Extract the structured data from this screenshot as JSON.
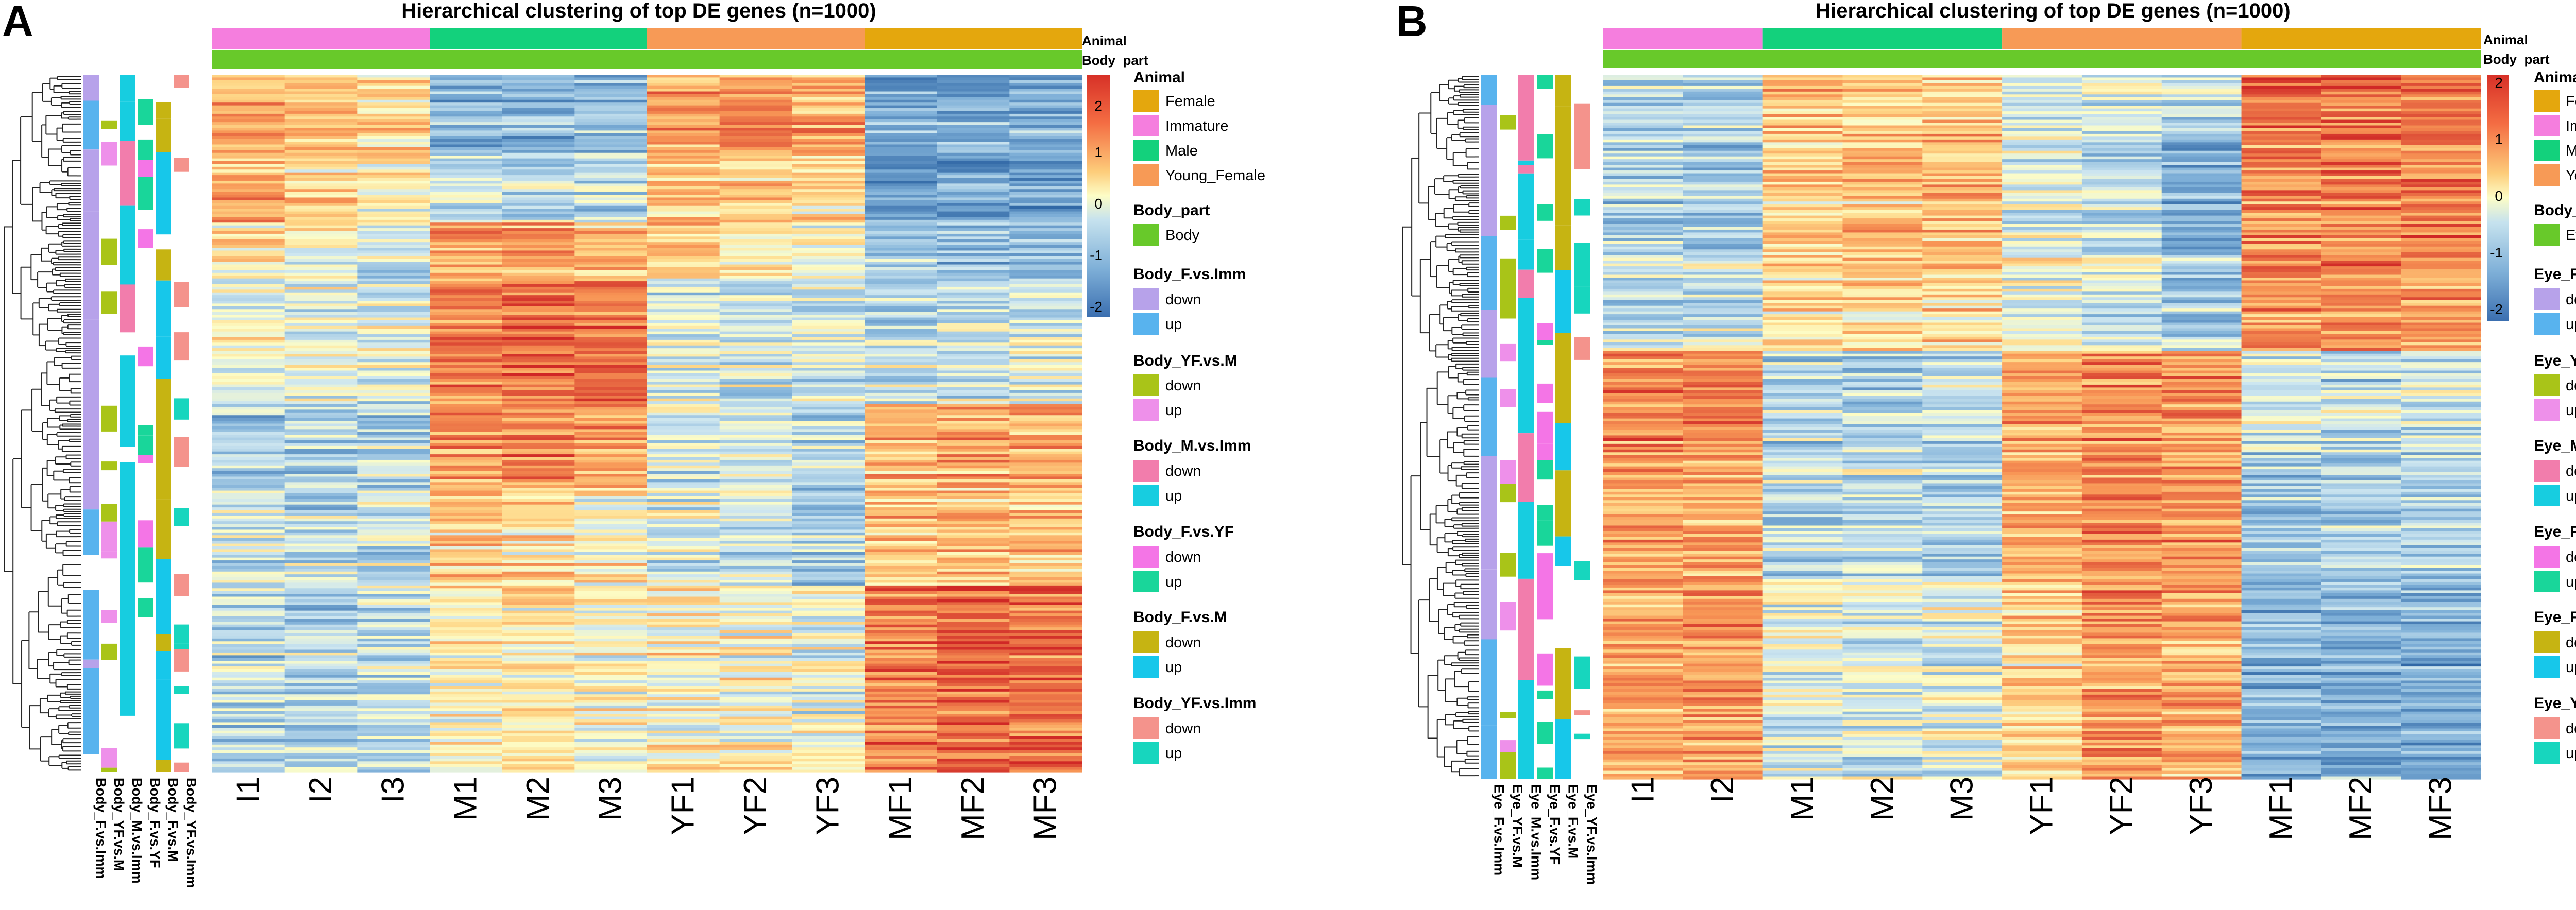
{
  "figure": {
    "colors": {
      "Female": "#e4a70d",
      "Immature": "#f57ede",
      "Male": "#13d17c",
      "Young_Female": "#f79a56",
      "Body": "#68c92a",
      "Eye": "#68c92a",
      "F_vs_Imm_down": "#b7a2ea",
      "F_vs_Imm_up": "#58b3ee",
      "YF_vs_M_down": "#a9c418",
      "YF_vs_M_up": "#ee90ea",
      "M_vs_Imm_down": "#f27dac",
      "M_vs_Imm_up": "#17cde0",
      "F_vs_YF_down": "#f475e6",
      "F_vs_YF_up": "#19d69a",
      "F_vs_M_down": "#c6b412",
      "F_vs_M_up": "#17c7ea",
      "YF_vs_Imm_down": "#f4938c",
      "YF_vs_Imm_up": "#17d6be"
    }
  },
  "chart_data": [
    {
      "panel": "A",
      "type": "heatmap",
      "title": "Hierarchical clustering of top DE genes (n=1000)",
      "n_genes": 1000,
      "samples": [
        "I1",
        "I2",
        "I3",
        "M1",
        "M2",
        "M3",
        "YF1",
        "YF2",
        "YF3",
        "MF1",
        "MF2",
        "MF3"
      ],
      "animal_groups": [
        {
          "label": "Immature",
          "n": 3
        },
        {
          "label": "Male",
          "n": 3
        },
        {
          "label": "Young_Female",
          "n": 3
        },
        {
          "label": "Female",
          "n": 3
        }
      ],
      "top_annotations": [
        "Animal",
        "Body_part"
      ],
      "row_annotations": [
        "Body_F.vs.Imm",
        "Body_YF.vs.M",
        "Body_M.vs.Imm",
        "Body_F.vs.YF",
        "Body_F.vs.M",
        "Body_YF.vs.Imm"
      ],
      "color_scale": {
        "min": -2,
        "max": 2,
        "ticks": [
          2,
          1,
          0,
          -1,
          -2
        ],
        "low": "#3b6fb0",
        "mid": "#fdfdc6",
        "high": "#d73027"
      },
      "gene_blocks": [
        {
          "fraction": 0.11,
          "values": [
            0.9,
            0.6,
            0.4,
            -1.0,
            -1.0,
            -0.9,
            0.8,
            1.0,
            0.7,
            -1.2,
            -1.1,
            -1.1
          ]
        },
        {
          "fraction": 0.1,
          "values": [
            0.7,
            0.3,
            0.2,
            -0.5,
            -0.6,
            -0.6,
            0.5,
            0.4,
            0.3,
            -1.4,
            -1.3,
            -1.3
          ]
        },
        {
          "fraction": 0.08,
          "values": [
            0.3,
            0.0,
            -0.3,
            0.9,
            0.9,
            0.7,
            0.4,
            0.2,
            0.0,
            -0.8,
            -0.9,
            -0.9
          ]
        },
        {
          "fraction": 0.18,
          "values": [
            0.0,
            -0.2,
            -0.2,
            1.2,
            1.4,
            1.3,
            -0.3,
            -0.3,
            -0.2,
            -0.4,
            -0.3,
            -0.2
          ]
        },
        {
          "fraction": 0.12,
          "values": [
            -0.7,
            -0.6,
            -0.6,
            0.9,
            1.1,
            1.0,
            -0.4,
            -0.4,
            -0.5,
            0.7,
            0.8,
            0.7
          ]
        },
        {
          "fraction": 0.14,
          "values": [
            -0.4,
            -0.5,
            -0.4,
            0.5,
            0.3,
            0.2,
            -0.3,
            -0.4,
            -0.7,
            0.6,
            0.7,
            0.6
          ]
        },
        {
          "fraction": 0.27,
          "values": [
            -0.6,
            -0.6,
            -0.5,
            0.1,
            0.2,
            0.0,
            0.1,
            0.0,
            -0.1,
            1.2,
            1.4,
            1.3
          ]
        }
      ]
    },
    {
      "panel": "B",
      "type": "heatmap",
      "title": "Hierarchical clustering of top DE genes (n=1000)",
      "n_genes": 1000,
      "samples": [
        "I1",
        "I2",
        "M1",
        "M2",
        "M3",
        "YF1",
        "YF2",
        "YF3",
        "MF1",
        "MF2",
        "MF3"
      ],
      "animal_groups": [
        {
          "label": "Immature",
          "n": 2
        },
        {
          "label": "Male",
          "n": 3
        },
        {
          "label": "Young_Female",
          "n": 3
        },
        {
          "label": "Female",
          "n": 3
        }
      ],
      "top_annotations": [
        "Animal",
        "Body_part"
      ],
      "row_annotations": [
        "Eye_F.vs.Imm",
        "Eye_YF.vs.M",
        "Eye_M.vs.Imm",
        "Eye_F.vs.YF",
        "Eye_F.vs.M",
        "Eye_YF.vs.Imm"
      ],
      "color_scale": {
        "min": -2,
        "max": 2,
        "ticks": [
          2,
          1,
          0,
          -1,
          -2
        ],
        "low": "#3b6fb0",
        "mid": "#fdfdc6",
        "high": "#d73027"
      },
      "gene_blocks": [
        {
          "fraction": 0.08,
          "values": [
            -0.5,
            -0.6,
            0.6,
            0.4,
            0.5,
            -0.3,
            -0.2,
            -0.4,
            1.4,
            1.3,
            1.2
          ]
        },
        {
          "fraction": 0.18,
          "values": [
            -0.6,
            -0.7,
            0.5,
            0.6,
            0.7,
            -0.3,
            -0.5,
            -1.1,
            1.1,
            1.2,
            1.2
          ]
        },
        {
          "fraction": 0.13,
          "values": [
            -0.4,
            -0.3,
            0.4,
            0.5,
            0.4,
            0.0,
            -0.2,
            -0.6,
            1.0,
            1.1,
            1.0
          ]
        },
        {
          "fraction": 0.14,
          "values": [
            1.1,
            1.2,
            -0.6,
            -0.7,
            -0.5,
            0.9,
            1.1,
            1.0,
            -0.3,
            -0.5,
            -0.4
          ]
        },
        {
          "fraction": 0.18,
          "values": [
            0.9,
            0.9,
            -0.5,
            -0.5,
            -0.6,
            0.8,
            1.2,
            1.1,
            -0.6,
            -0.6,
            -0.6
          ]
        },
        {
          "fraction": 0.29,
          "values": [
            0.8,
            1.0,
            -0.2,
            -0.3,
            -0.2,
            0.5,
            1.0,
            0.8,
            -1.0,
            -1.0,
            -1.1
          ]
        }
      ]
    }
  ],
  "panels": {
    "A": {
      "label": "A",
      "title": "Hierarchical clustering of top DE genes (n=1000)",
      "anno_animal": "Animal",
      "anno_part": "Body_part",
      "legend": {
        "animal_title": "Animal",
        "animal_items": [
          "Female",
          "Immature",
          "Male",
          "Young_Female"
        ],
        "part_title": "Body_part",
        "part_item": "Body",
        "groups": [
          {
            "title": "Body_F.vs.Imm",
            "down": "down",
            "up": "up"
          },
          {
            "title": "Body_YF.vs.M",
            "down": "down",
            "up": "up"
          },
          {
            "title": "Body_M.vs.Imm",
            "down": "down",
            "up": "up"
          },
          {
            "title": "Body_F.vs.YF",
            "down": "down",
            "up": "up"
          },
          {
            "title": "Body_F.vs.M",
            "down": "down",
            "up": "up"
          },
          {
            "title": "Body_YF.vs.Imm",
            "down": "down",
            "up": "up"
          }
        ]
      },
      "ticks": [
        "2",
        "1",
        "0",
        "-1",
        "-2"
      ]
    },
    "B": {
      "label": "B",
      "title": "Hierarchical clustering of top DE genes (n=1000)",
      "anno_animal": "Animal",
      "anno_part": "Body_part",
      "legend": {
        "animal_title": "Animal",
        "animal_items": [
          "Female",
          "Immature",
          "Male",
          "Young_Female"
        ],
        "part_title": "Body_part",
        "part_item": "Eye",
        "groups": [
          {
            "title": "Eye_F.vs.Imm",
            "down": "down",
            "up": "up"
          },
          {
            "title": "Eye_YF.vs.M",
            "down": "down",
            "up": "up"
          },
          {
            "title": "Eye_M.vs.Imm",
            "down": "down",
            "up": "up"
          },
          {
            "title": "Eye_F.vs.YF",
            "down": "down",
            "up": "up"
          },
          {
            "title": "Eye_F.vs.M",
            "down": "down",
            "up": "up"
          },
          {
            "title": "Eye_YF.vs.Imm",
            "down": "down",
            "up": "up"
          }
        ]
      },
      "ticks": [
        "2",
        "1",
        "0",
        "-1",
        "-2"
      ]
    }
  }
}
